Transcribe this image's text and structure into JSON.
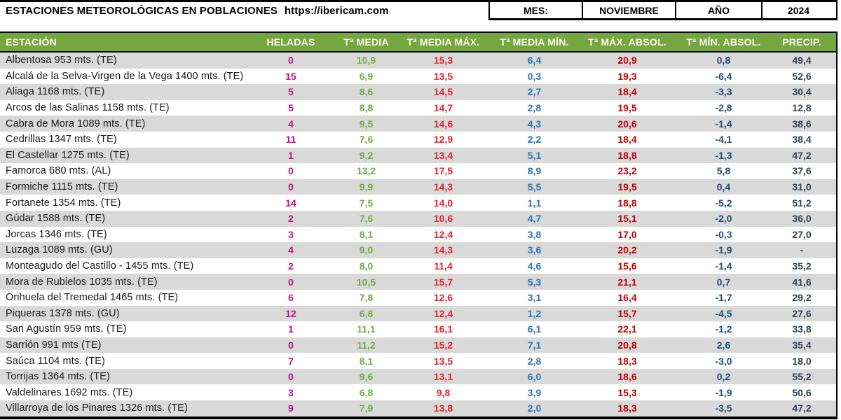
{
  "page": {
    "title": "ESTACIONES METEOROLÓGICAS EN POBLACIONES",
    "url": "https://ibericam.com"
  },
  "meta": {
    "month_label": "MES:",
    "month_value": "NOVIEMBRE",
    "year_label": "AÑO",
    "year_value": "2024"
  },
  "colors": {
    "header_bg": "#76A73E",
    "header_text": "#FCFDF3",
    "row_alt": "#D9D9D9",
    "station": "#1A1A1A",
    "heladas": "#BF0D8F",
    "t_media": "#70AD47",
    "t_media_max": "#E8202A",
    "t_media_min": "#2E75B6",
    "t_max_absol": "#C00000",
    "t_min_absol": "#1F4E79",
    "precip": "#333F50"
  },
  "table": {
    "columns": [
      {
        "key": "station",
        "label": "ESTACIÓN"
      },
      {
        "key": "heladas",
        "label": "HELADAS"
      },
      {
        "key": "t_media",
        "label": "Tª MEDIA"
      },
      {
        "key": "t_media_max",
        "label": "Tª MEDIA MÁX."
      },
      {
        "key": "t_media_min",
        "label": "Tª MEDIA MÍN."
      },
      {
        "key": "t_max_absol",
        "label": "Tª MÁX. ABSOL."
      },
      {
        "key": "t_min_absol",
        "label": "Tª MÍN. ABSOL."
      },
      {
        "key": "precip",
        "label": "PRECIP."
      }
    ],
    "rows": [
      {
        "station": "Albentosa 953 mts. (TE)",
        "heladas": "0",
        "t_media": "10,9",
        "t_media_max": "15,3",
        "t_media_min": "6,4",
        "t_max_absol": "20,9",
        "t_min_absol": "0,8",
        "precip": "49,4"
      },
      {
        "station": "Alcalá de la Selva-Virgen de la Vega 1400 mts. (TE)",
        "heladas": "15",
        "t_media": "6,9",
        "t_media_max": "13,5",
        "t_media_min": "0,3",
        "t_max_absol": "19,3",
        "t_min_absol": "-6,4",
        "precip": "52,6"
      },
      {
        "station": "Aliaga 1168 mts. (TE)",
        "heladas": "5",
        "t_media": "8,6",
        "t_media_max": "14,5",
        "t_media_min": "2,7",
        "t_max_absol": "18,4",
        "t_min_absol": "-3,3",
        "precip": "30,4"
      },
      {
        "station": "Arcos de las Salinas 1158 mts. (TE)",
        "heladas": "5",
        "t_media": "8,8",
        "t_media_max": "14,7",
        "t_media_min": "2,8",
        "t_max_absol": "19,5",
        "t_min_absol": "-2,8",
        "precip": "12,8"
      },
      {
        "station": "Cabra de Mora 1089 mts. (TE)",
        "heladas": "4",
        "t_media": "9,5",
        "t_media_max": "14,6",
        "t_media_min": "4,3",
        "t_max_absol": "20,6",
        "t_min_absol": "-1,4",
        "precip": "38,6"
      },
      {
        "station": "Cedrillas 1347 mts. (TE)",
        "heladas": "11",
        "t_media": "7,6",
        "t_media_max": "12,9",
        "t_media_min": "2,2",
        "t_max_absol": "18,4",
        "t_min_absol": "-4,1",
        "precip": "38,4"
      },
      {
        "station": "El Castellar 1275 mts. (TE)",
        "heladas": "1",
        "t_media": "9,2",
        "t_media_max": "13,4",
        "t_media_min": "5,1",
        "t_max_absol": "18,8",
        "t_min_absol": "-1,3",
        "precip": "47,2"
      },
      {
        "station": "Famorca 680 mts. (AL)",
        "heladas": "0",
        "t_media": "13,2",
        "t_media_max": "17,5",
        "t_media_min": "8,9",
        "t_max_absol": "23,2",
        "t_min_absol": "5,8",
        "precip": "37,6"
      },
      {
        "station": "Formiche 1115 mts. (TE)",
        "heladas": "0",
        "t_media": "9,9",
        "t_media_max": "14,3",
        "t_media_min": "5,5",
        "t_max_absol": "19,5",
        "t_min_absol": "0,4",
        "precip": "31,0"
      },
      {
        "station": "Fortanete 1354 mts. (TE)",
        "heladas": "14",
        "t_media": "7,5",
        "t_media_max": "14,0",
        "t_media_min": "1,1",
        "t_max_absol": "18,8",
        "t_min_absol": "-5,2",
        "precip": "51,2"
      },
      {
        "station": "Gúdar 1588 mts. (TE)",
        "heladas": "2",
        "t_media": "7,6",
        "t_media_max": "10,6",
        "t_media_min": "4,7",
        "t_max_absol": "15,1",
        "t_min_absol": "-2,0",
        "precip": "36,0"
      },
      {
        "station": "Jorcas 1346 mts. (TE)",
        "heladas": "3",
        "t_media": "8,1",
        "t_media_max": "12,4",
        "t_media_min": "3,8",
        "t_max_absol": "17,0",
        "t_min_absol": "-0,3",
        "precip": "27,0"
      },
      {
        "station": "Luzaga 1089 mts. (GU)",
        "heladas": "4",
        "t_media": "9,0",
        "t_media_max": "14,3",
        "t_media_min": "3,6",
        "t_max_absol": "20,2",
        "t_min_absol": "-1,9",
        "precip": "-"
      },
      {
        "station": "Monteagudo del Castillo - 1455 mts. (TE)",
        "heladas": "2",
        "t_media": "8,0",
        "t_media_max": "11,4",
        "t_media_min": "4,6",
        "t_max_absol": "15,6",
        "t_min_absol": "-1,4",
        "precip": "35,2"
      },
      {
        "station": "Mora de Rubielos 1035 mts. (TE)",
        "heladas": "0",
        "t_media": "10,5",
        "t_media_max": "15,7",
        "t_media_min": "5,3",
        "t_max_absol": "21,1",
        "t_min_absol": "0,7",
        "precip": "41,6"
      },
      {
        "station": "Orihuela del Tremedal 1465 mts. (TE)",
        "heladas": "6",
        "t_media": "7,8",
        "t_media_max": "12,6",
        "t_media_min": "3,1",
        "t_max_absol": "16,4",
        "t_min_absol": "-1,7",
        "precip": "29,2"
      },
      {
        "station": "Piqueras 1378 mts. (GU)",
        "heladas": "12",
        "t_media": "6,8",
        "t_media_max": "12,4",
        "t_media_min": "1,2",
        "t_max_absol": "15,7",
        "t_min_absol": "-4,5",
        "precip": "27,6"
      },
      {
        "station": "San Agustín 959 mts. (TE)",
        "heladas": "1",
        "t_media": "11,1",
        "t_media_max": "16,1",
        "t_media_min": "6,1",
        "t_max_absol": "22,1",
        "t_min_absol": "-1,2",
        "precip": "33,8"
      },
      {
        "station": "Sarrión 991 mts  (TE)",
        "heladas": "0",
        "t_media": "11,2",
        "t_media_max": "15,2",
        "t_media_min": "7,1",
        "t_max_absol": "20,8",
        "t_min_absol": "2,6",
        "precip": "35,4"
      },
      {
        "station": "Saúca 1104 mts. (TE)",
        "heladas": "7",
        "t_media": "8,1",
        "t_media_max": "13,5",
        "t_media_min": "2,8",
        "t_max_absol": "18,3",
        "t_min_absol": "-3,0",
        "precip": "18,0"
      },
      {
        "station": "Torrijas 1364 mts. (TE)",
        "heladas": "0",
        "t_media": "9,6",
        "t_media_max": "13,1",
        "t_media_min": "6,0",
        "t_max_absol": "18,6",
        "t_min_absol": "0,2",
        "precip": "55,2"
      },
      {
        "station": "Valdelinares 1692 mts. (TE)",
        "heladas": "3",
        "t_media": "6,8",
        "t_media_max": "9,8",
        "t_media_min": "3,9",
        "t_max_absol": "15,3",
        "t_min_absol": "-1,9",
        "precip": "50,6"
      },
      {
        "station": "Villarroya de los Pinares 1326 mts. (TE)",
        "heladas": "9",
        "t_media": "7,9",
        "t_media_max": "13,8",
        "t_media_min": "2,0",
        "t_max_absol": "18,3",
        "t_min_absol": "-3,5",
        "precip": "47,2"
      }
    ]
  }
}
